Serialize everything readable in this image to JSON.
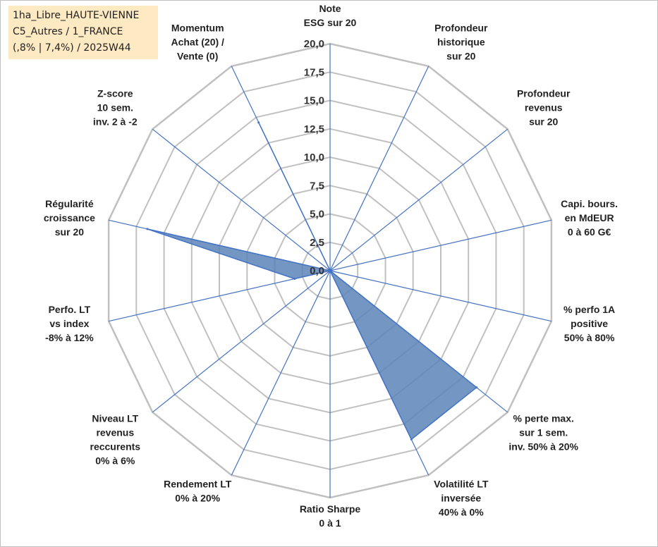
{
  "info_box": {
    "line1": "1ha_Libre_HAUTE-VIENNE",
    "line2": "C5_Autres / 1_FRANCE",
    "line3": "(,8% | 7,4%) / 2025W44"
  },
  "colors": {
    "grid": "#c0c0c0",
    "spoke": "#4472c4",
    "fill": "#5b84b8",
    "outline": "#4472c4",
    "info_bg": "#fde9c2"
  },
  "chart_data": {
    "type": "radar",
    "title": "",
    "rlim": [
      0,
      20
    ],
    "grid": true,
    "ticks": [
      "0,0",
      "2,5",
      "5,0",
      "7,5",
      "10,0",
      "12,5",
      "15,0",
      "17,5",
      "20,0"
    ],
    "axes": [
      [
        "Note",
        "ESG sur 20"
      ],
      [
        "Profondeur",
        "historique",
        "sur 20"
      ],
      [
        "Profondeur",
        "revenus",
        "sur 20"
      ],
      [
        "Capi. bours.",
        "en MdEUR",
        "0 à 60 G€"
      ],
      [
        "% perfo 1A",
        "positive",
        "50% à 80%"
      ],
      [
        "% perte max.",
        "sur 1 sem.",
        "inv. 50% à 20%"
      ],
      [
        "Volatilité LT",
        "inversée",
        "40% à 0%"
      ],
      [
        "Ratio Sharpe",
        "0 à 1"
      ],
      [
        "Rendement LT",
        "0% à 20%"
      ],
      [
        "Niveau LT",
        "revenus",
        "reccurents",
        "0% à 6%"
      ],
      [
        "Perfo. LT",
        "vs index",
        "-8% à 12%"
      ],
      [
        "Régularité",
        "croissance",
        "sur 20"
      ],
      [
        "Z-score",
        "10 sem.",
        "inv. 2 à -2"
      ],
      [
        "Momentum",
        "Achat (20) /",
        "Vente (0)"
      ]
    ],
    "series": [
      {
        "values": [
          0,
          0,
          0,
          0,
          0,
          16.5,
          16.5,
          0,
          0,
          0,
          3.2,
          16.5,
          0,
          14.5
        ]
      }
    ]
  }
}
